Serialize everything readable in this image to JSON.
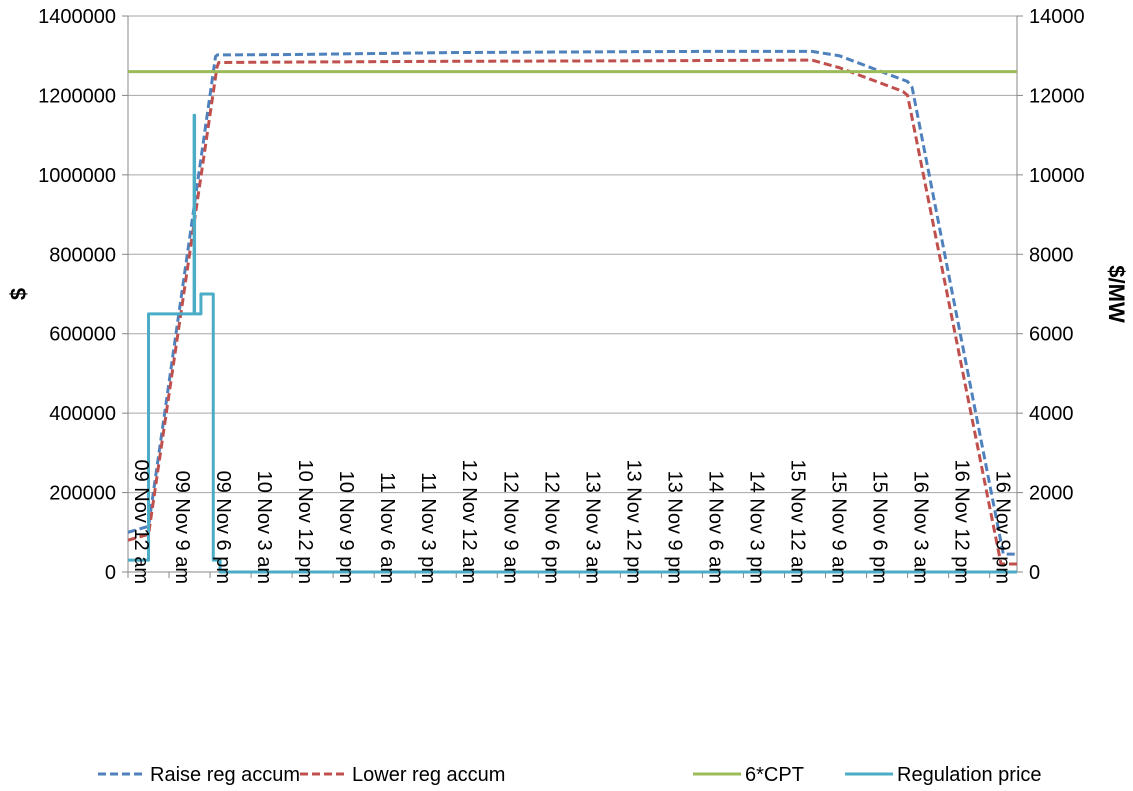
{
  "chart_data": {
    "type": "line",
    "title": "",
    "ylabel": "$",
    "y2label": "$/MW",
    "ylim": [
      0,
      1400000
    ],
    "y2lim": [
      0,
      14000
    ],
    "yticks": [
      0,
      200000,
      400000,
      600000,
      800000,
      1000000,
      1200000,
      1400000
    ],
    "y2ticks": [
      0,
      2000,
      4000,
      6000,
      8000,
      10000,
      12000,
      14000
    ],
    "xlim": [
      0,
      195
    ],
    "xticks": [
      {
        "x": 0,
        "label": "09 Nov 12 am"
      },
      {
        "x": 9,
        "label": "09 Nov 9 am"
      },
      {
        "x": 18,
        "label": "09 Nov 6 pm"
      },
      {
        "x": 27,
        "label": "10 Nov 3 am"
      },
      {
        "x": 36,
        "label": "10 Nov 12 pm"
      },
      {
        "x": 45,
        "label": "10 Nov 9 pm"
      },
      {
        "x": 54,
        "label": "11 Nov 6 am"
      },
      {
        "x": 63,
        "label": "11 Nov 3 pm"
      },
      {
        "x": 72,
        "label": "12 Nov 12 am"
      },
      {
        "x": 81,
        "label": "12 Nov 9 am"
      },
      {
        "x": 90,
        "label": "12 Nov 6 pm"
      },
      {
        "x": 99,
        "label": "13 Nov 3 am"
      },
      {
        "x": 108,
        "label": "13 Nov 12 pm"
      },
      {
        "x": 117,
        "label": "13 Nov 9 pm"
      },
      {
        "x": 126,
        "label": "14 Nov 6 am"
      },
      {
        "x": 135,
        "label": "14 Nov 3 pm"
      },
      {
        "x": 144,
        "label": "15 Nov 12 am"
      },
      {
        "x": 153,
        "label": "15 Nov 9 am"
      },
      {
        "x": 162,
        "label": "15 Nov 6 pm"
      },
      {
        "x": 171,
        "label": "16 Nov 3 am"
      },
      {
        "x": 180,
        "label": "16 Nov 12 pm"
      },
      {
        "x": 189,
        "label": "16 Nov 9 pm"
      }
    ],
    "grid": "horizontal",
    "legend_position": "bottom",
    "series": [
      {
        "name": "Raise reg accum",
        "axis": "left",
        "color": "#4f81bd",
        "style": "dashed",
        "points": [
          [
            0,
            100000
          ],
          [
            4.5,
            115000
          ],
          [
            19.2,
            1298000
          ],
          [
            19.6,
            1302000
          ],
          [
            36,
            1303000
          ],
          [
            72,
            1308000
          ],
          [
            108,
            1310000
          ],
          [
            130,
            1311000
          ],
          [
            150,
            1311000
          ],
          [
            156,
            1300000
          ],
          [
            171,
            1235000
          ],
          [
            172,
            1220000
          ],
          [
            192,
            45000
          ],
          [
            195,
            45000
          ]
        ]
      },
      {
        "name": "Lower reg accum",
        "axis": "left",
        "color": "#c0504d",
        "style": "dashed",
        "points": [
          [
            0,
            80000
          ],
          [
            4.5,
            95000
          ],
          [
            19.5,
            1270000
          ],
          [
            19.9,
            1283000
          ],
          [
            36,
            1284000
          ],
          [
            72,
            1286000
          ],
          [
            108,
            1287000
          ],
          [
            150,
            1289000
          ],
          [
            156,
            1270000
          ],
          [
            170,
            1210000
          ],
          [
            171,
            1200000
          ],
          [
            191.5,
            20000
          ],
          [
            195,
            20000
          ]
        ]
      },
      {
        "name": "6*CPT",
        "axis": "left",
        "color": "#9bbb59",
        "style": "solid",
        "points": [
          [
            0,
            1260000
          ],
          [
            195,
            1260000
          ]
        ]
      },
      {
        "name": "Regulation price",
        "axis": "right",
        "color": "#4bacc6",
        "style": "solid",
        "points": [
          [
            0,
            300
          ],
          [
            4.5,
            300
          ],
          [
            4.5,
            6500
          ],
          [
            14.5,
            6500
          ],
          [
            14.5,
            11500
          ],
          [
            14.6,
            11500
          ],
          [
            14.6,
            6500
          ],
          [
            16,
            6500
          ],
          [
            16,
            7000
          ],
          [
            18.7,
            7000
          ],
          [
            18.7,
            300
          ],
          [
            20.2,
            300
          ],
          [
            20.2,
            0
          ],
          [
            195,
            0
          ]
        ]
      }
    ]
  }
}
